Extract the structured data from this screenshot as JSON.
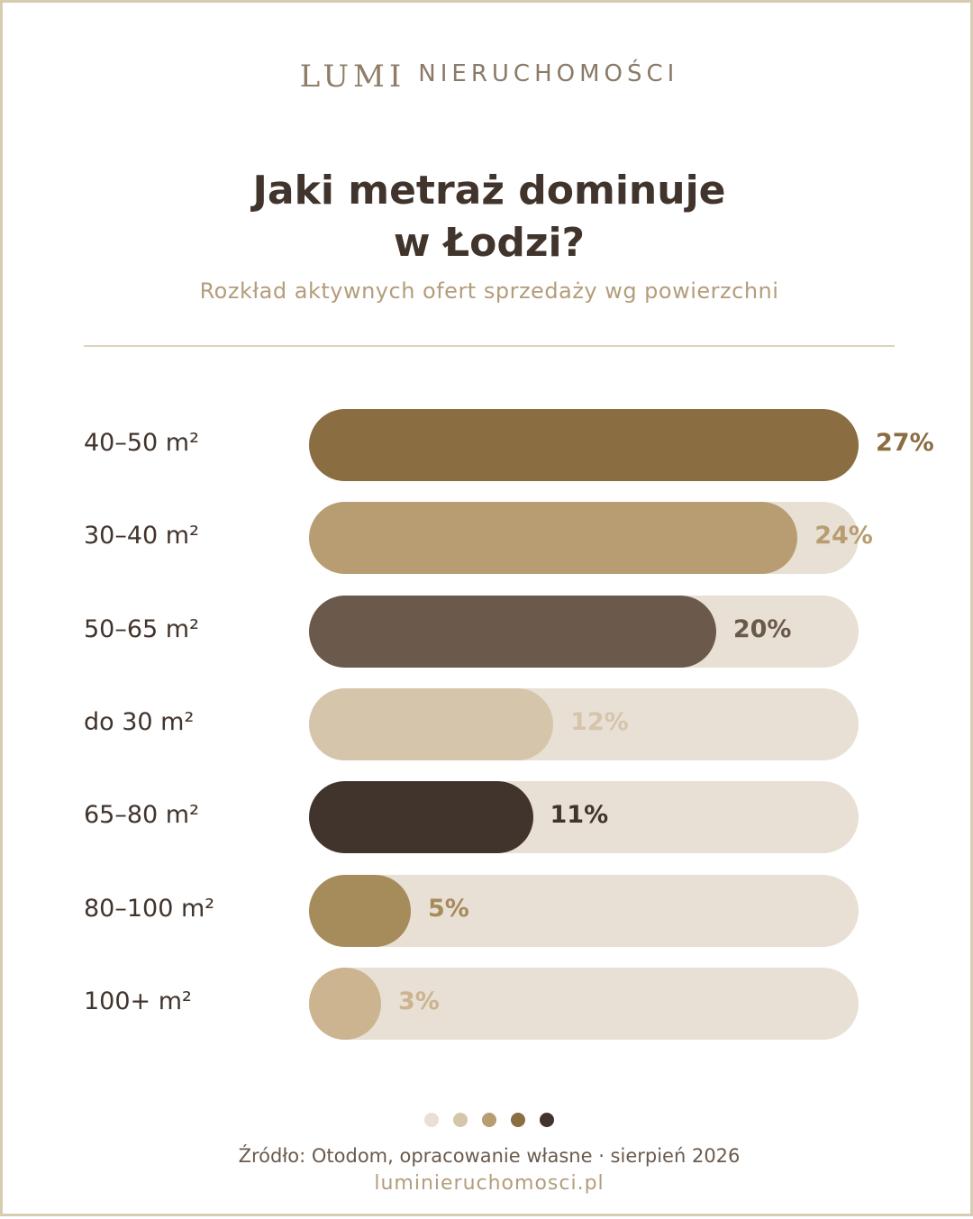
{
  "brand": {
    "name": "LUMI",
    "sub": "NIERUCHOMOŚCI"
  },
  "header": {
    "title_line1": "Jaki metraż dominuje",
    "title_line2": "w Łodzi?",
    "subtitle": "Rozkład aktywnych ofert sprzedaży wg powierzchni"
  },
  "chart_data": {
    "type": "bar",
    "orientation": "horizontal",
    "categories": [
      "40–50 m²",
      "30–40 m²",
      "50–65 m²",
      "do 30 m²",
      "65–80 m²",
      "80–100 m²",
      "100+ m²"
    ],
    "values": [
      27,
      24,
      20,
      12,
      11,
      5,
      3
    ],
    "value_labels": [
      "27%",
      "24%",
      "20%",
      "12%",
      "11%",
      "5%",
      "3%"
    ],
    "bar_colors": [
      "#8a6d40",
      "#b89d72",
      "#6b5a4c",
      "#d4c5ab",
      "#41342c",
      "#a68b5b",
      "#cbb48f"
    ],
    "track_color": "#e8e0d4",
    "xlim": [
      0,
      27
    ],
    "grid": false,
    "legend": "none"
  },
  "pagination": {
    "dot_colors": [
      "#e8e0d4",
      "#d4c5ab",
      "#b89d72",
      "#8a6d40",
      "#41342c"
    ]
  },
  "footer": {
    "source": "Źródło: Otodom, opracowanie własne · sierpień 2026",
    "site": "luminieruchomosci.pl"
  }
}
